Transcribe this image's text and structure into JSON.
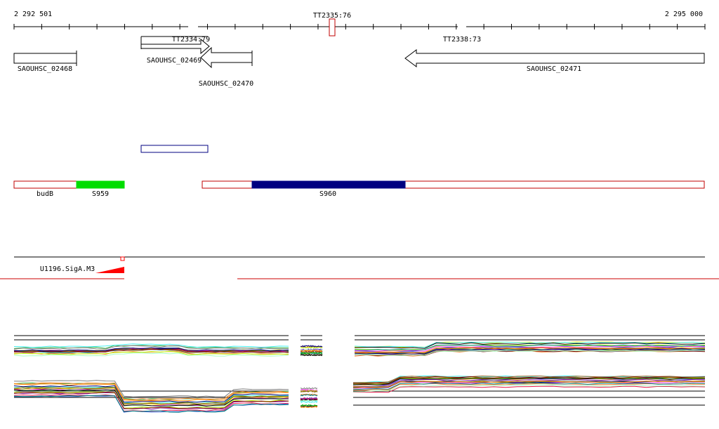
{
  "coords": {
    "start": "2 292 501",
    "end": "2 295 000"
  },
  "terminators": [
    {
      "label": "TT2335:76",
      "highlighted": true
    },
    {
      "label": "TT2334:79",
      "highlighted": false
    },
    {
      "label": "TT2338:73",
      "highlighted": false
    }
  ],
  "genes": [
    {
      "label": "SAOUHSC_02468",
      "strand": "none"
    },
    {
      "label": "SAOUHSC_02469",
      "strand": "forward"
    },
    {
      "label": "SAOUHSC_02470",
      "strand": "reverse"
    },
    {
      "label": "SAOUHSC_02471",
      "strand": "reverse"
    }
  ],
  "segments": [
    {
      "label": "budB",
      "color": "#ffffff",
      "border": "#c00000"
    },
    {
      "label": "S959",
      "color": "#00dd00",
      "border": "#00dd00"
    },
    {
      "label": "S960",
      "color": "#000080",
      "border": "#000080"
    }
  ],
  "promoter": {
    "label": "U1196.SigA.M3",
    "color": "#ff0000"
  },
  "colors": {
    "axis": "#000000",
    "feature_border": "#c00000",
    "operon_box": "#000080",
    "red_line": "#cc0000"
  }
}
